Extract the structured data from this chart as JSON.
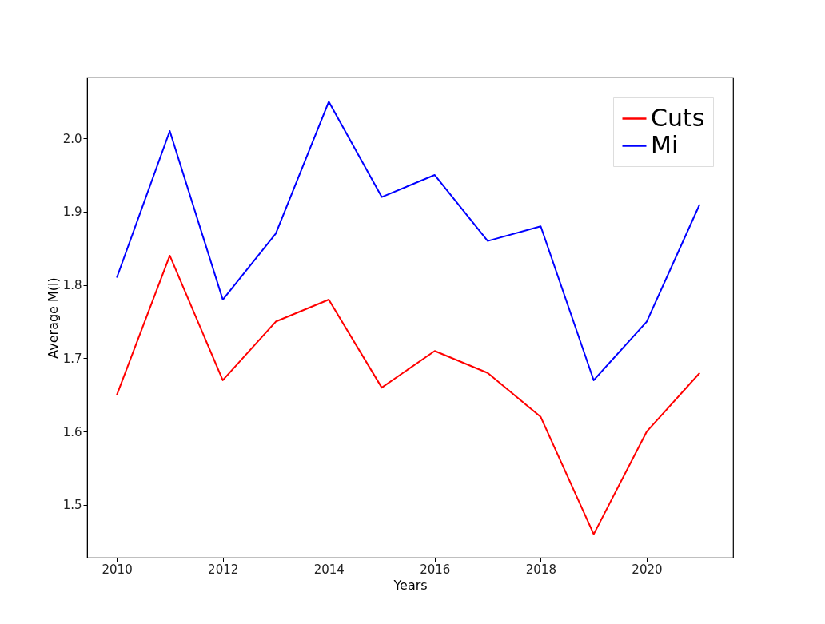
{
  "chart_data": {
    "type": "line",
    "xlabel": "Years",
    "ylabel": "Average M(i)",
    "x": [
      2010,
      2011,
      2012,
      2013,
      2014,
      2015,
      2016,
      2017,
      2018,
      2019,
      2020,
      2021
    ],
    "series": [
      {
        "name": "Cuts",
        "color": "#ff0000",
        "values": [
          1.65,
          1.84,
          1.67,
          1.75,
          1.78,
          1.66,
          1.71,
          1.68,
          1.62,
          1.46,
          1.6,
          1.68
        ]
      },
      {
        "name": "Mi",
        "color": "#0000ff",
        "values": [
          1.81,
          2.01,
          1.78,
          1.87,
          2.05,
          1.92,
          1.95,
          1.86,
          1.88,
          1.67,
          1.75,
          1.91
        ]
      }
    ],
    "xlim": [
      2009.44,
      2021.63
    ],
    "ylim": [
      1.428,
      2.083
    ],
    "xticks": [
      2010,
      2012,
      2014,
      2016,
      2018,
      2020
    ],
    "yticks": [
      1.5,
      1.6,
      1.7,
      1.8,
      1.9,
      {
        "value": 2,
        "label": "2.0"
      }
    ],
    "grid": false,
    "legend": "top right",
    "marker": "none",
    "line_style": "solid"
  }
}
